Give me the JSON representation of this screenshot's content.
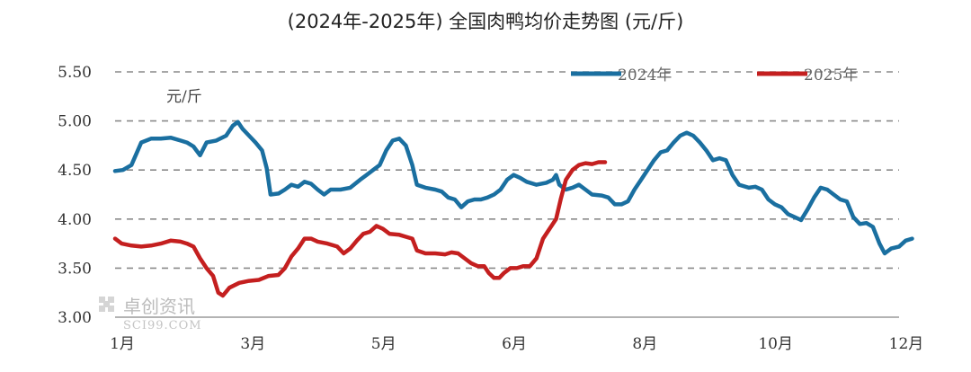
{
  "chart_data": {
    "type": "line",
    "title": "(2024年-2025年) 全国肉鸭均价走势图 (元/斤)",
    "ylabel": "元/斤",
    "ylim": [
      3.0,
      5.5
    ],
    "yticks": [
      "3.00",
      "3.50",
      "4.00",
      "4.50",
      "5.00",
      "5.50"
    ],
    "xlim": [
      0,
      12
    ],
    "xticks": [
      {
        "label": "1月",
        "x": 0
      },
      {
        "label": "3月",
        "x": 2
      },
      {
        "label": "5月",
        "x": 4
      },
      {
        "label": "6月",
        "x": 6
      },
      {
        "label": "8月",
        "x": 8
      },
      {
        "label": "10月",
        "x": 10
      },
      {
        "label": "12月",
        "x": 12
      }
    ],
    "grid": "horizontal dashed",
    "legend_position": "top-right",
    "series": [
      {
        "name": "2024年",
        "color": "#1a6fa0",
        "points": [
          [
            0.0,
            4.49
          ],
          [
            0.12,
            4.5
          ],
          [
            0.25,
            4.55
          ],
          [
            0.4,
            4.78
          ],
          [
            0.55,
            4.82
          ],
          [
            0.7,
            4.82
          ],
          [
            0.85,
            4.83
          ],
          [
            1.0,
            4.8
          ],
          [
            1.1,
            4.78
          ],
          [
            1.2,
            4.74
          ],
          [
            1.3,
            4.65
          ],
          [
            1.4,
            4.78
          ],
          [
            1.55,
            4.8
          ],
          [
            1.7,
            4.85
          ],
          [
            1.8,
            4.95
          ],
          [
            1.88,
            4.99
          ],
          [
            1.95,
            4.92
          ],
          [
            2.05,
            4.85
          ],
          [
            2.15,
            4.78
          ],
          [
            2.25,
            4.7
          ],
          [
            2.32,
            4.52
          ],
          [
            2.38,
            4.25
          ],
          [
            2.5,
            4.26
          ],
          [
            2.6,
            4.3
          ],
          [
            2.7,
            4.35
          ],
          [
            2.8,
            4.33
          ],
          [
            2.9,
            4.38
          ],
          [
            3.0,
            4.36
          ],
          [
            3.1,
            4.3
          ],
          [
            3.2,
            4.25
          ],
          [
            3.3,
            4.3
          ],
          [
            3.45,
            4.3
          ],
          [
            3.6,
            4.32
          ],
          [
            3.75,
            4.4
          ],
          [
            3.85,
            4.45
          ],
          [
            3.95,
            4.5
          ],
          [
            4.05,
            4.55
          ],
          [
            4.15,
            4.7
          ],
          [
            4.25,
            4.8
          ],
          [
            4.35,
            4.82
          ],
          [
            4.45,
            4.75
          ],
          [
            4.55,
            4.55
          ],
          [
            4.62,
            4.35
          ],
          [
            4.75,
            4.32
          ],
          [
            4.9,
            4.3
          ],
          [
            5.0,
            4.28
          ],
          [
            5.1,
            4.22
          ],
          [
            5.2,
            4.2
          ],
          [
            5.3,
            4.12
          ],
          [
            5.4,
            4.18
          ],
          [
            5.5,
            4.2
          ],
          [
            5.6,
            4.2
          ],
          [
            5.7,
            4.22
          ],
          [
            5.8,
            4.25
          ],
          [
            5.9,
            4.3
          ],
          [
            6.0,
            4.4
          ],
          [
            6.1,
            4.45
          ],
          [
            6.2,
            4.42
          ],
          [
            6.3,
            4.38
          ],
          [
            6.45,
            4.35
          ],
          [
            6.6,
            4.37
          ],
          [
            6.7,
            4.4
          ],
          [
            6.75,
            4.45
          ],
          [
            6.8,
            4.35
          ],
          [
            6.9,
            4.3
          ],
          [
            7.0,
            4.32
          ],
          [
            7.1,
            4.35
          ],
          [
            7.2,
            4.3
          ],
          [
            7.3,
            4.25
          ],
          [
            7.45,
            4.24
          ],
          [
            7.55,
            4.22
          ],
          [
            7.65,
            4.15
          ],
          [
            7.75,
            4.15
          ],
          [
            7.85,
            4.18
          ],
          [
            7.95,
            4.3
          ],
          [
            8.05,
            4.4
          ],
          [
            8.15,
            4.5
          ],
          [
            8.25,
            4.6
          ],
          [
            8.35,
            4.68
          ],
          [
            8.45,
            4.7
          ],
          [
            8.55,
            4.78
          ],
          [
            8.65,
            4.85
          ],
          [
            8.75,
            4.88
          ],
          [
            8.85,
            4.85
          ],
          [
            8.95,
            4.78
          ],
          [
            9.05,
            4.7
          ],
          [
            9.15,
            4.6
          ],
          [
            9.25,
            4.62
          ],
          [
            9.35,
            4.6
          ],
          [
            9.45,
            4.45
          ],
          [
            9.55,
            4.35
          ],
          [
            9.7,
            4.32
          ],
          [
            9.8,
            4.33
          ],
          [
            9.9,
            4.3
          ],
          [
            10.0,
            4.2
          ],
          [
            10.1,
            4.15
          ],
          [
            10.2,
            4.12
          ],
          [
            10.3,
            4.05
          ],
          [
            10.4,
            4.02
          ],
          [
            10.5,
            3.99
          ],
          [
            10.6,
            4.1
          ],
          [
            10.7,
            4.22
          ],
          [
            10.8,
            4.32
          ],
          [
            10.9,
            4.3
          ],
          [
            11.0,
            4.25
          ],
          [
            11.1,
            4.2
          ],
          [
            11.2,
            4.18
          ],
          [
            11.3,
            4.02
          ],
          [
            11.4,
            3.95
          ],
          [
            11.5,
            3.96
          ],
          [
            11.6,
            3.92
          ],
          [
            11.7,
            3.75
          ],
          [
            11.78,
            3.65
          ],
          [
            11.88,
            3.7
          ],
          [
            12.0,
            3.72
          ],
          [
            12.1,
            3.78
          ],
          [
            12.2,
            3.8
          ]
        ]
      },
      {
        "name": "2025年",
        "color": "#c41f1f",
        "points": [
          [
            0.0,
            3.8
          ],
          [
            0.1,
            3.75
          ],
          [
            0.25,
            3.73
          ],
          [
            0.4,
            3.72
          ],
          [
            0.55,
            3.73
          ],
          [
            0.7,
            3.75
          ],
          [
            0.85,
            3.78
          ],
          [
            1.0,
            3.77
          ],
          [
            1.1,
            3.75
          ],
          [
            1.2,
            3.72
          ],
          [
            1.3,
            3.6
          ],
          [
            1.4,
            3.5
          ],
          [
            1.5,
            3.42
          ],
          [
            1.58,
            3.25
          ],
          [
            1.65,
            3.22
          ],
          [
            1.75,
            3.3
          ],
          [
            1.9,
            3.35
          ],
          [
            2.05,
            3.37
          ],
          [
            2.2,
            3.38
          ],
          [
            2.35,
            3.42
          ],
          [
            2.5,
            3.43
          ],
          [
            2.6,
            3.5
          ],
          [
            2.7,
            3.62
          ],
          [
            2.8,
            3.7
          ],
          [
            2.9,
            3.8
          ],
          [
            3.0,
            3.8
          ],
          [
            3.1,
            3.77
          ],
          [
            3.25,
            3.75
          ],
          [
            3.4,
            3.72
          ],
          [
            3.5,
            3.65
          ],
          [
            3.6,
            3.7
          ],
          [
            3.7,
            3.78
          ],
          [
            3.8,
            3.85
          ],
          [
            3.9,
            3.87
          ],
          [
            4.0,
            3.93
          ],
          [
            4.1,
            3.9
          ],
          [
            4.2,
            3.85
          ],
          [
            4.35,
            3.84
          ],
          [
            4.45,
            3.82
          ],
          [
            4.55,
            3.8
          ],
          [
            4.62,
            3.68
          ],
          [
            4.75,
            3.65
          ],
          [
            4.9,
            3.65
          ],
          [
            5.05,
            3.64
          ],
          [
            5.15,
            3.66
          ],
          [
            5.25,
            3.65
          ],
          [
            5.35,
            3.6
          ],
          [
            5.45,
            3.55
          ],
          [
            5.55,
            3.52
          ],
          [
            5.65,
            3.52
          ],
          [
            5.72,
            3.45
          ],
          [
            5.8,
            3.4
          ],
          [
            5.88,
            3.4
          ],
          [
            5.95,
            3.45
          ],
          [
            6.05,
            3.5
          ],
          [
            6.15,
            3.5
          ],
          [
            6.25,
            3.52
          ],
          [
            6.35,
            3.52
          ],
          [
            6.45,
            3.6
          ],
          [
            6.55,
            3.8
          ],
          [
            6.65,
            3.9
          ],
          [
            6.75,
            4.0
          ],
          [
            6.82,
            4.2
          ],
          [
            6.9,
            4.4
          ],
          [
            7.0,
            4.5
          ],
          [
            7.1,
            4.55
          ],
          [
            7.2,
            4.57
          ],
          [
            7.3,
            4.56
          ],
          [
            7.4,
            4.58
          ],
          [
            7.5,
            4.58
          ]
        ]
      }
    ]
  },
  "watermark": {
    "brand": "卓创资讯",
    "site": "SCI99.COM"
  }
}
